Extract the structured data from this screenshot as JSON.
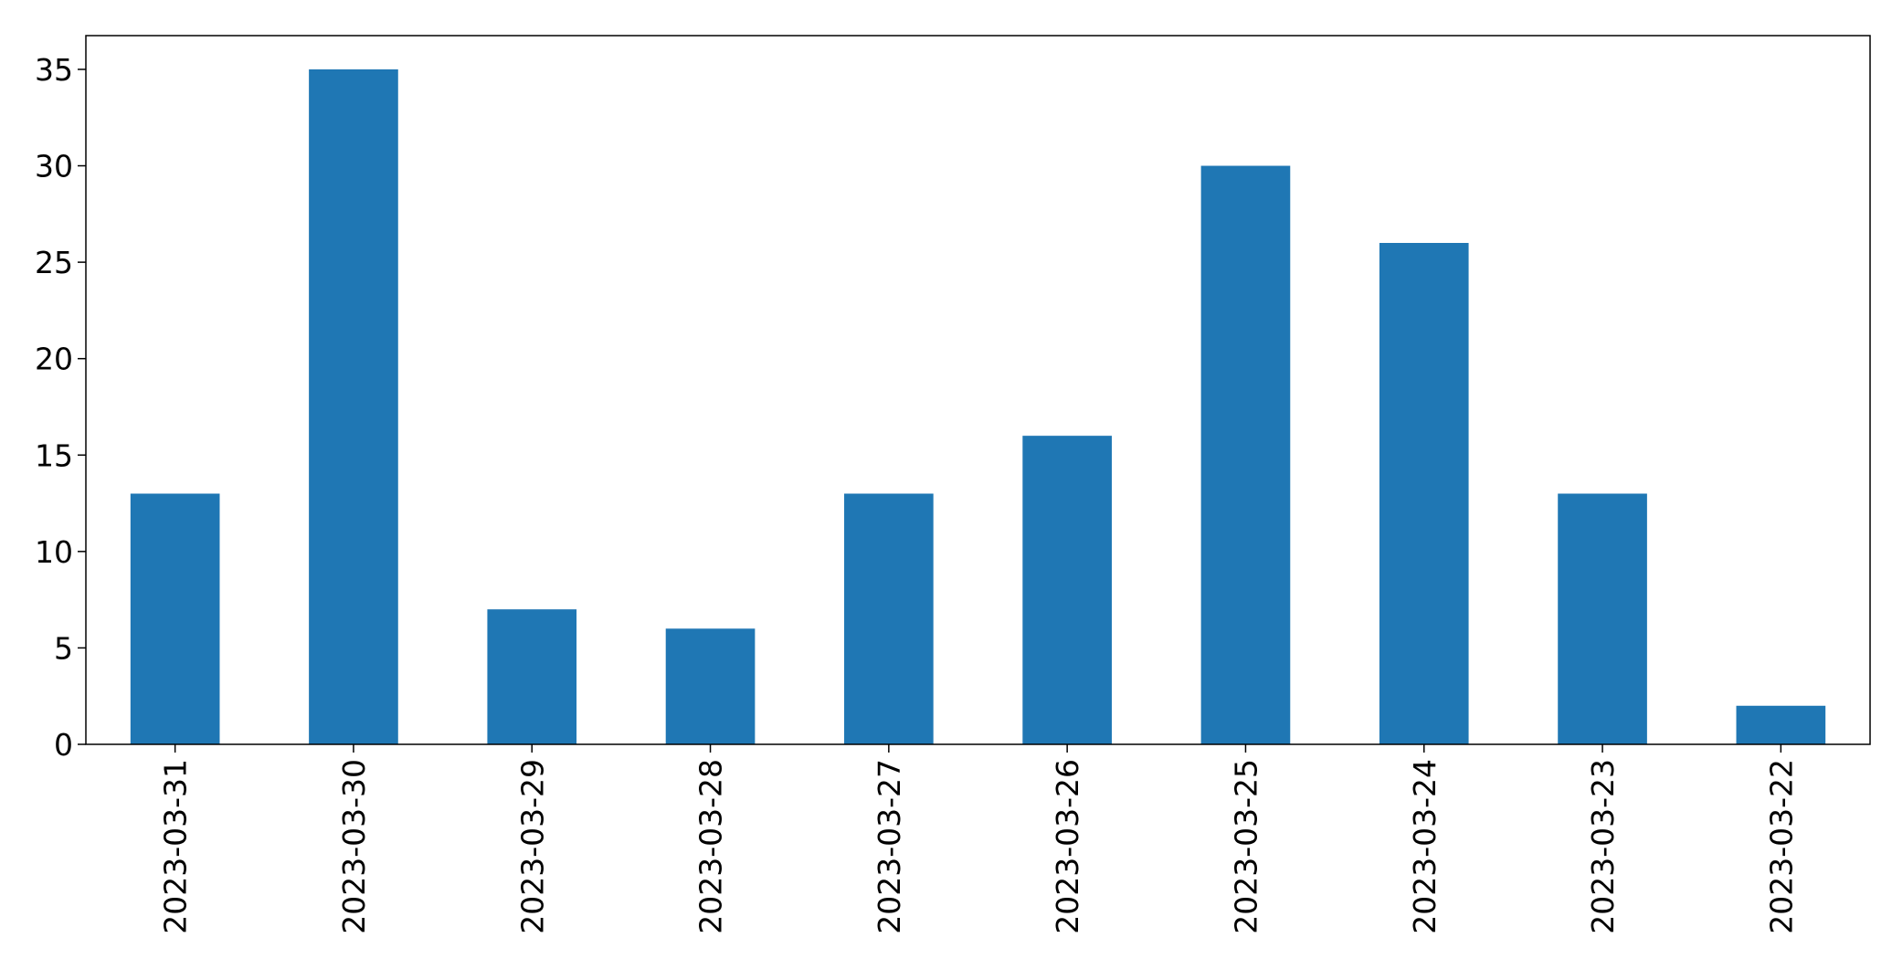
{
  "chart_data": {
    "type": "bar",
    "categories": [
      "2023-03-31",
      "2023-03-30",
      "2023-03-29",
      "2023-03-28",
      "2023-03-27",
      "2023-03-26",
      "2023-03-25",
      "2023-03-24",
      "2023-03-23",
      "2023-03-22"
    ],
    "values": [
      13,
      35,
      7,
      6,
      13,
      16,
      30,
      26,
      13,
      2
    ],
    "title": "",
    "xlabel": "",
    "ylabel": "",
    "ylim": [
      0,
      36.75
    ],
    "yticks": [
      0,
      5,
      10,
      15,
      20,
      25,
      30,
      35
    ],
    "grid": false,
    "legend": "none",
    "bar_color": "#1f77b4"
  }
}
